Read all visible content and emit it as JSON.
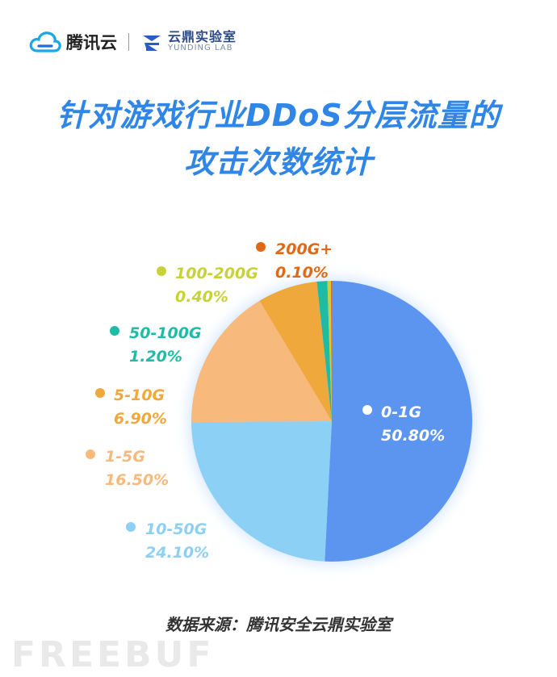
{
  "header": {
    "brand_name": "腾讯云",
    "lab_name_cn": "云鼎实验室",
    "lab_name_en": "YUNDING LAB"
  },
  "title_lines": [
    "针对游戏行业DDoS分层流量的",
    "攻击次数统计"
  ],
  "source": "数据来源：腾讯安全云鼎实验室",
  "watermark": "FREEBUF",
  "chart_data": {
    "type": "pie",
    "title": "针对游戏行业DDoS分层流量的攻击次数统计",
    "categories": [
      "0-1G",
      "10-50G",
      "1-5G",
      "5-10G",
      "50-100G",
      "100-200G",
      "200G+"
    ],
    "values": [
      50.8,
      24.1,
      16.5,
      6.9,
      1.2,
      0.4,
      0.1
    ],
    "value_labels": [
      "50.80%",
      "24.10%",
      "16.50%",
      "6.90%",
      "1.20%",
      "0.40%",
      "0.10%"
    ],
    "colors": [
      "#5b95f0",
      "#8dd0f5",
      "#f8b97d",
      "#eea83c",
      "#1fbca5",
      "#c6d238",
      "#e06817"
    ],
    "start_angle_deg": 0,
    "direction": "clockwise",
    "legend": "inline labels"
  }
}
